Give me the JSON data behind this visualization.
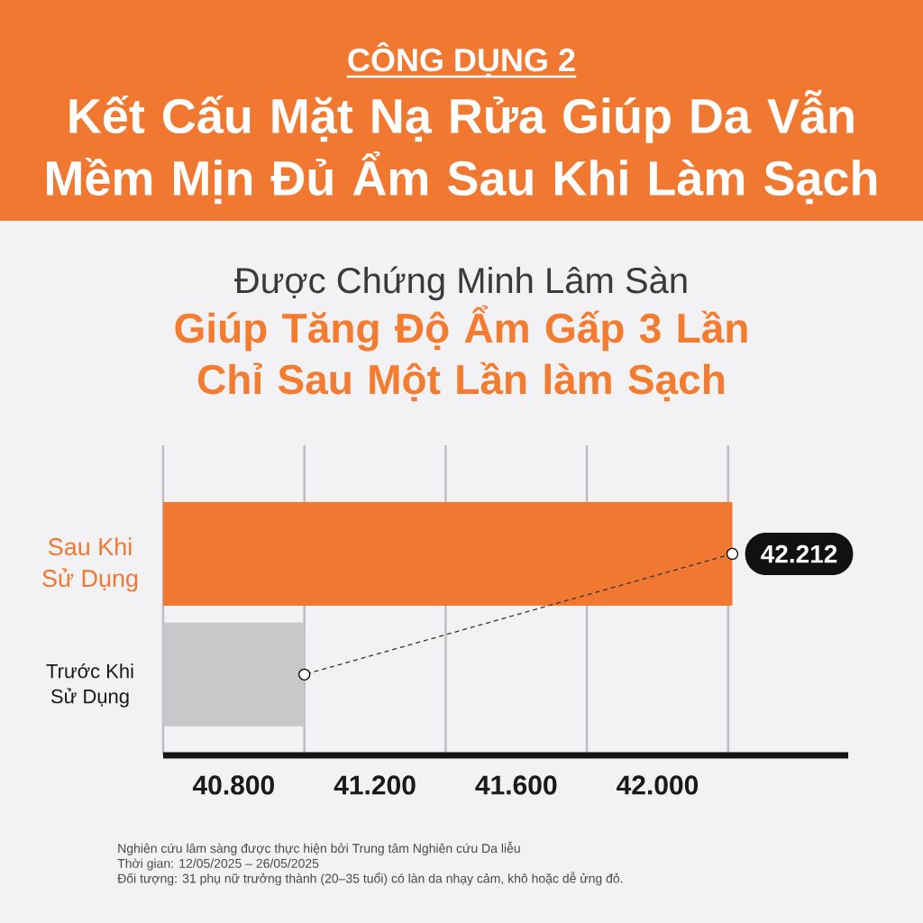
{
  "chart_data": {
    "type": "bar",
    "orientation": "horizontal",
    "title": "Kết Cấu Mặt Nạ Rửa Giúp Da Vẫn Mềm Mịn Đủ Ẩm Sau Khi Làm Sạch",
    "subtitle": "Được Chứng Minh Lâm Sàn",
    "annotations": [
      "CÔNG DỤNG 2",
      "Giúp Tăng Độ Ẩm Gấp 3 Lần Chỉ Sau Một Lần làm Sạch",
      "Nghiên cứu lâm sàng được thực hiện bởi Trung tâm Nghiên cứu Da liễu",
      "Thời gian: 12/05/2025 – 26/05/2025",
      "Đối tượng: 31 phụ nữ trưởng thành (20–35 tuổi) có làn da nhạy cảm, khô hoặc dễ ửng đỏ."
    ],
    "categories": [
      "Sau Khi Sử Dụng",
      "Trước Khi Sử Dụng"
    ],
    "series": [
      {
        "values": [
          42.212,
          41.0
        ],
        "colors": [
          "#f07830",
          "#c8c7c9"
        ]
      },
      {
        "type": "line",
        "values": [
          42.212,
          41.0
        ],
        "color": "#333333",
        "line_style": "dashed",
        "marker": "circle",
        "value_labels": [
          "42.212",
          null
        ]
      }
    ],
    "xlim": [
      40.6,
      42.54
    ],
    "xticks": [
      {
        "value": 40.6,
        "label": null
      },
      {
        "value": 40.8,
        "label": "40.800"
      },
      {
        "value": 41.0,
        "label": null
      },
      {
        "value": 41.2,
        "label": "41.200"
      },
      {
        "value": 41.4,
        "label": null
      },
      {
        "value": 41.6,
        "label": "41.600"
      },
      {
        "value": 41.8,
        "label": null
      },
      {
        "value": 42.0,
        "label": "42.000"
      },
      {
        "value": 42.2,
        "label": null
      }
    ],
    "grid": "x"
  }
}
